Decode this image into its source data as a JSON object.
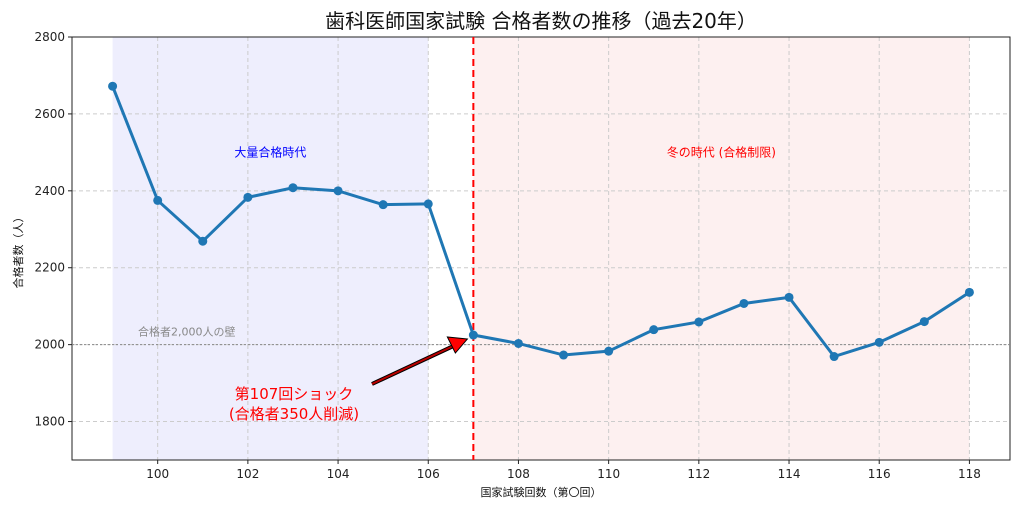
{
  "chart_data": {
    "type": "line",
    "title": "歯科医師国家試験 合格者数の推移（過去20年）",
    "xlabel": "国家試験回数（第〇回）",
    "ylabel": "合格者数（人）",
    "x": [
      99,
      100,
      101,
      102,
      103,
      104,
      105,
      106,
      107,
      108,
      109,
      110,
      111,
      112,
      113,
      114,
      115,
      116,
      117,
      118
    ],
    "values": [
      2672,
      2375,
      2269,
      2383,
      2408,
      2400,
      2364,
      2366,
      2025,
      2003,
      1973,
      1983,
      2039,
      2059,
      2107,
      2123,
      1969,
      2006,
      2060,
      2136
    ],
    "xlim": [
      98.1,
      118.9
    ],
    "ylim": [
      1700,
      2800
    ],
    "xticks": [
      100,
      102,
      104,
      106,
      108,
      110,
      112,
      114,
      116,
      118
    ],
    "yticks": [
      1800,
      2000,
      2200,
      2400,
      2600,
      2800
    ],
    "grid": true,
    "line_color": "#1f77b4",
    "regions": [
      {
        "label": "大量合格時代",
        "from": 99,
        "to": 106,
        "color": "#eeeefd",
        "label_color": "#0000ff"
      },
      {
        "label": "冬の時代 (合格制限)",
        "from": 107,
        "to": 118,
        "color": "#fdf0f0",
        "label_color": "#ff0000"
      }
    ],
    "vline": {
      "x": 107,
      "color": "#ff0000"
    },
    "hline": {
      "y": 2000,
      "label": "合格者2,000人の壁",
      "color": "#888888"
    },
    "annotation": {
      "line1": "第107回ショック",
      "line2": "(合格者350人削減)",
      "target_x": 107,
      "target_y": 2025,
      "color": "#ff0000"
    }
  }
}
